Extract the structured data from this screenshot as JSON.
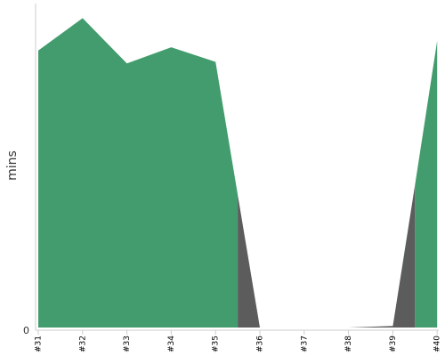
{
  "chart_data": {
    "type": "area",
    "categories": [
      "#31",
      "#32",
      "#33",
      "#34",
      "#35",
      "#36",
      "#37",
      "#38",
      "#39",
      "#40"
    ],
    "ylabel": "mins",
    "y_tick_labels": [
      "0"
    ],
    "ylim": [
      0,
      100
    ],
    "series": [
      {
        "color": "#439c6d",
        "points": [
          {
            "x": 0,
            "y": 85.5
          },
          {
            "x": 1,
            "y": 95.5
          },
          {
            "x": 2,
            "y": 81.5
          },
          {
            "x": 3,
            "y": 86.5
          },
          {
            "x": 4,
            "y": 82
          },
          {
            "x": 4.5,
            "y": 41
          },
          {
            "x": 4.5,
            "y": 0
          },
          {
            "x": 8.5,
            "y": 0
          },
          {
            "x": 8.5,
            "y": 44
          },
          {
            "x": 9,
            "y": 88.5
          }
        ]
      },
      {
        "color": "#5c5c5c",
        "points": [
          {
            "x": 4.5,
            "y": 41
          },
          {
            "x": 5,
            "y": 0
          },
          {
            "x": 7,
            "y": 0
          },
          {
            "x": 8,
            "y": 0.5
          },
          {
            "x": 8.5,
            "y": 44
          }
        ]
      }
    ]
  }
}
